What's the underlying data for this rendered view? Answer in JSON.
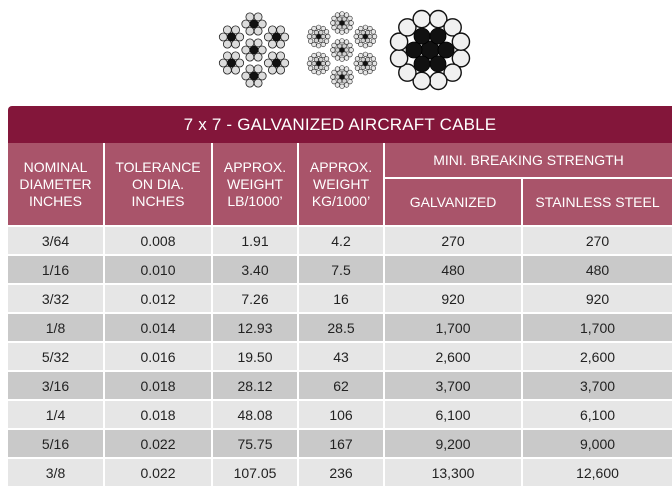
{
  "page": {
    "title": "7 x 7 - GALVANIZED AIRCRAFT CABLE",
    "icons": [
      "cable-7x7-cross-section-icon",
      "cable-7x19-cross-section-icon",
      "cable-1x19-cross-section-icon"
    ]
  },
  "table": {
    "headers": {
      "nominal_diameter": [
        "NOMINAL",
        "DIAMETER",
        "INCHES"
      ],
      "tolerance": [
        "TOLERANCE",
        "ON DIA.",
        "INCHES"
      ],
      "weight_lb": [
        "APPROX.",
        "WEIGHT",
        "LB/1000’"
      ],
      "weight_kg": [
        "APPROX.",
        "WEIGHT",
        "KG/1000’"
      ],
      "breaking_strength": "MINI. BREAKING STRENGTH",
      "galvanized": "GALVANIZED",
      "stainless": "STAINLESS STEEL"
    },
    "rows": [
      [
        "3/64",
        "0.008",
        "1.91",
        "4.2",
        "270",
        "270"
      ],
      [
        "1/16",
        "0.010",
        "3.40",
        "7.5",
        "480",
        "480"
      ],
      [
        "3/32",
        "0.012",
        "7.26",
        "16",
        "920",
        "920"
      ],
      [
        "1/8",
        "0.014",
        "12.93",
        "28.5",
        "1,700",
        "1,700"
      ],
      [
        "5/32",
        "0.016",
        "19.50",
        "43",
        "2,600",
        "2,600"
      ],
      [
        "3/16",
        "0.018",
        "28.12",
        "62",
        "3,700",
        "3,700"
      ],
      [
        "1/4",
        "0.018",
        "48.08",
        "106",
        "6,100",
        "6,100"
      ],
      [
        "5/16",
        "0.022",
        "75.75",
        "167",
        "9,200",
        "9,000"
      ],
      [
        "3/8",
        "0.022",
        "107.05",
        "236",
        "13,300",
        "12,600"
      ]
    ]
  },
  "colors": {
    "title_bg": "#83163a",
    "header_bg": "#a9546a",
    "row_light": "#e6e6e6",
    "row_dark": "#c9c9c9"
  }
}
